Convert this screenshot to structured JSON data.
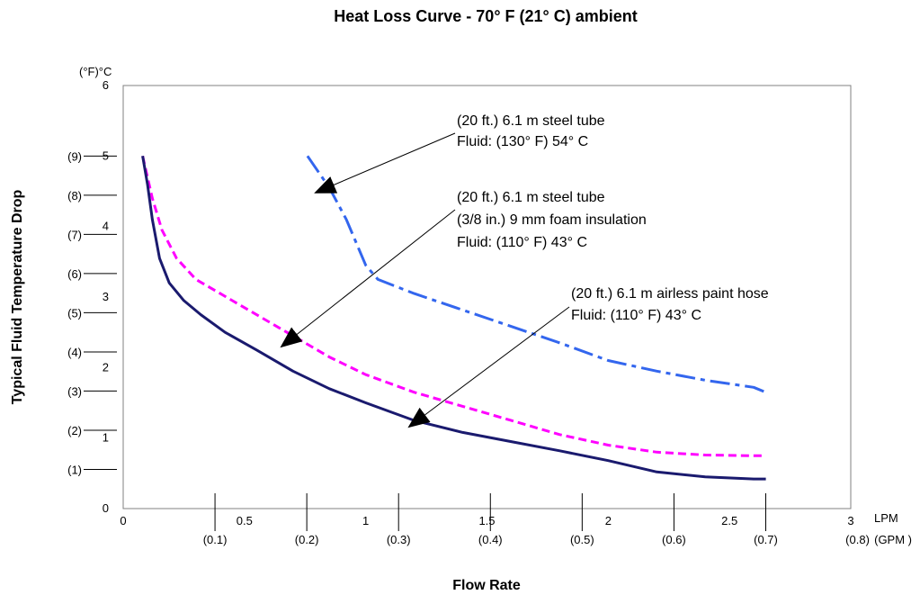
{
  "chart_data": {
    "type": "line",
    "title": "Heat Loss Curve - 70° F (21° C) ambient",
    "xlabel": "Flow Rate",
    "ylabel": "Typical Fluid Temperature Drop",
    "x_unit_primary": "LPM",
    "x_unit_secondary": "(GPM )",
    "y_unit_label": "(°F)°C",
    "xlim": [
      0,
      3
    ],
    "ylim": [
      0,
      6
    ],
    "x_ticks": [
      "0",
      "0.5",
      "1",
      "1.5",
      "2",
      "2.5",
      "3"
    ],
    "y_ticks": [
      "0",
      "1",
      "2",
      "3",
      "4",
      "5",
      "6"
    ],
    "x_ticks_secondary": [
      {
        "label": "(0.1)",
        "lpm": 0.3785
      },
      {
        "label": "(0.2)",
        "lpm": 0.757
      },
      {
        "label": "(0.3)",
        "lpm": 1.1355
      },
      {
        "label": "(0.4)",
        "lpm": 1.514
      },
      {
        "label": "(0.5)",
        "lpm": 1.8925
      },
      {
        "label": "(0.6)",
        "lpm": 2.271
      },
      {
        "label": "(0.7)",
        "lpm": 2.6495
      },
      {
        "label": "(0.8)",
        "lpm": 3.028
      }
    ],
    "y_ticks_secondary": [
      {
        "label": "(1)",
        "c": 0.556
      },
      {
        "label": "(2)",
        "c": 1.111
      },
      {
        "label": "(3)",
        "c": 1.667
      },
      {
        "label": "(4)",
        "c": 2.222
      },
      {
        "label": "(5)",
        "c": 2.778
      },
      {
        "label": "(6)",
        "c": 3.333
      },
      {
        "label": "(7)",
        "c": 3.889
      },
      {
        "label": "(8)",
        "c": 4.444
      },
      {
        "label": "(9)",
        "c": 5.0
      }
    ],
    "series": [
      {
        "color": "#3366ee",
        "dash": "dashdot",
        "x": [
          0.76,
          0.85,
          0.92,
          1.0,
          1.05,
          1.2,
          1.5,
          1.8,
          2.0,
          2.2,
          2.4,
          2.6,
          2.65
        ],
        "y": [
          5.0,
          4.55,
          4.1,
          3.45,
          3.25,
          3.05,
          2.7,
          2.35,
          2.1,
          1.95,
          1.82,
          1.72,
          1.65
        ]
      },
      {
        "color": "#ff00ff",
        "dash": "dashed",
        "x": [
          0.08,
          0.12,
          0.16,
          0.22,
          0.3,
          0.4,
          0.55,
          0.7,
          0.85,
          1.0,
          1.2,
          1.4,
          1.6,
          1.8,
          2.0,
          2.2,
          2.4,
          2.6,
          2.65
        ],
        "y": [
          5.0,
          4.4,
          3.95,
          3.55,
          3.25,
          3.05,
          2.75,
          2.45,
          2.15,
          1.9,
          1.65,
          1.45,
          1.25,
          1.05,
          0.9,
          0.8,
          0.76,
          0.75,
          0.75
        ]
      },
      {
        "color": "#1a1a6e",
        "dash": "solid",
        "x": [
          0.08,
          0.1,
          0.12,
          0.15,
          0.19,
          0.25,
          0.32,
          0.42,
          0.55,
          0.7,
          0.85,
          1.0,
          1.2,
          1.4,
          1.6,
          1.8,
          2.0,
          2.2,
          2.4,
          2.6,
          2.65
        ],
        "y": [
          5.0,
          4.6,
          4.1,
          3.55,
          3.2,
          2.95,
          2.75,
          2.5,
          2.25,
          1.95,
          1.7,
          1.5,
          1.25,
          1.08,
          0.95,
          0.82,
          0.68,
          0.52,
          0.45,
          0.42,
          0.42
        ]
      }
    ],
    "annotations": [
      {
        "lines": [
          "(20 ft.) 6.1 m steel tube",
          "Fluid: (130° F) 54° C"
        ],
        "points_to": {
          "x": 0.82,
          "y": 4.55
        }
      },
      {
        "lines": [
          "(20 ft.) 6.1 m steel tube",
          "(3/8 in.) 9 mm foam insulation",
          "Fluid: (110° F) 43° C"
        ],
        "points_to": {
          "x": 0.66,
          "y": 2.3
        }
      },
      {
        "lines": [
          "(20 ft.) 6.1 m airless paint hose",
          "Fluid: (110° F) 43° C"
        ],
        "points_to": {
          "x": 1.18,
          "y": 1.15
        }
      }
    ]
  }
}
